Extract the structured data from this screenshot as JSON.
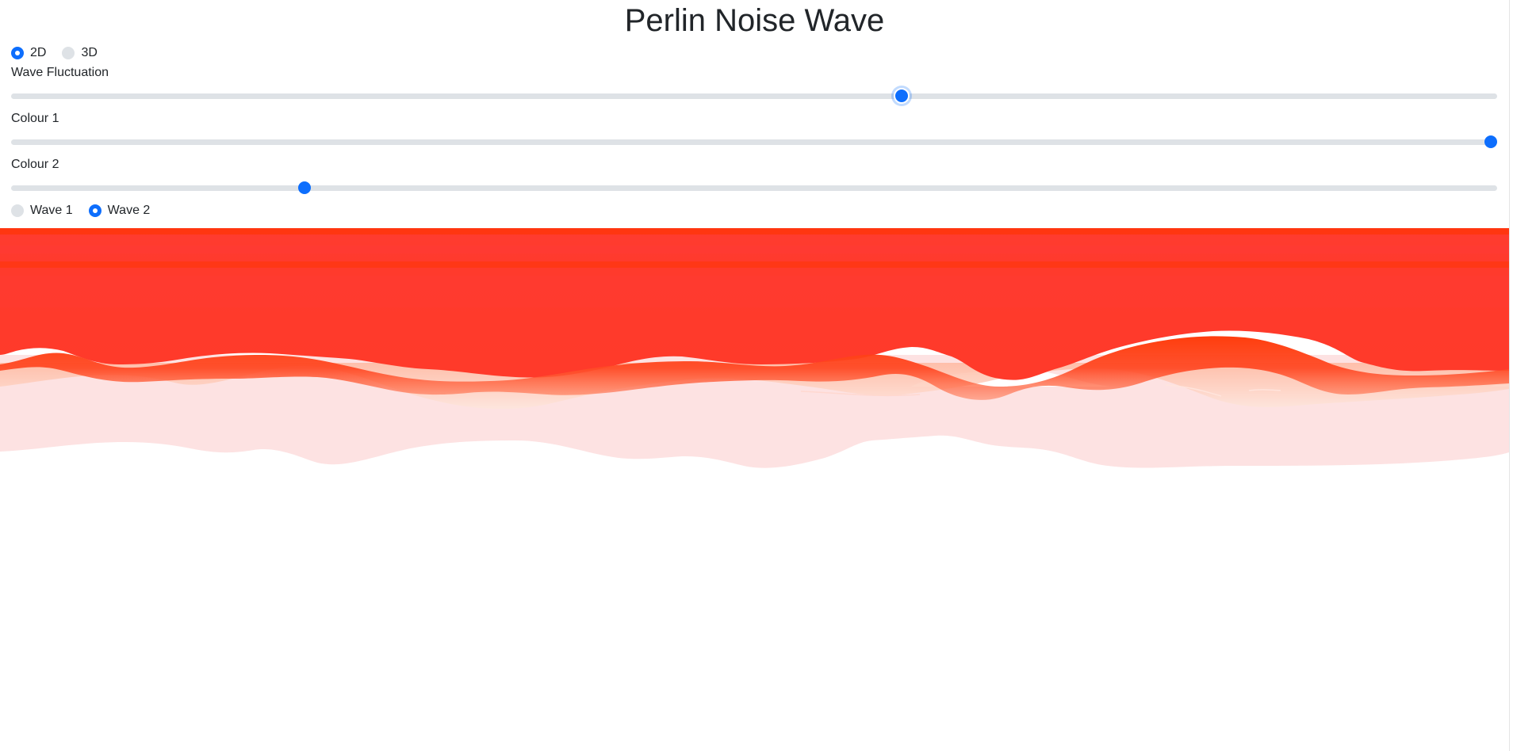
{
  "title": "Perlin Noise Wave",
  "dimension": {
    "options": [
      {
        "label": "2D",
        "checked": true
      },
      {
        "label": "3D",
        "checked": false
      }
    ]
  },
  "controls": {
    "wave_fluctuation": {
      "label": "Wave Fluctuation",
      "value": 0.6
    },
    "colour1": {
      "label": "Colour 1",
      "value": 1.0
    },
    "colour2": {
      "label": "Colour 2",
      "value": 0.195
    }
  },
  "wave": {
    "options": [
      {
        "label": "Wave 1",
        "checked": false
      },
      {
        "label": "Wave 2",
        "checked": true
      }
    ]
  },
  "colors": {
    "accent": "#0d6efd",
    "wave_top": "#ff3300",
    "wave_mid": "#ff3b2f",
    "wave_light": "#fde2e2"
  }
}
